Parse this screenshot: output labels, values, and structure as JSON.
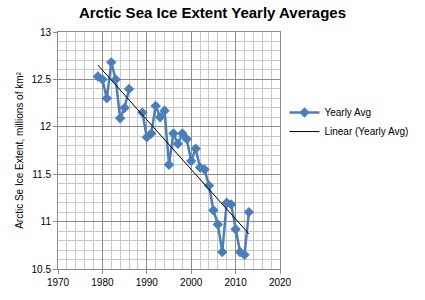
{
  "chart_data": {
    "type": "line",
    "title": "Arctic Sea Ice Extent Yearly Averages",
    "y_label": "Arctic Se Ice Extent, millions of km²",
    "x": [
      1979,
      1980,
      1981,
      1982,
      1983,
      1984,
      1985,
      1986,
      1987,
      1988,
      1989,
      1990,
      1991,
      1992,
      1993,
      1994,
      1995,
      1996,
      1997,
      1998,
      1999,
      2000,
      2001,
      2002,
      2003,
      2004,
      2005,
      2006,
      2007,
      2008,
      2009,
      2010,
      2011,
      2012,
      2013
    ],
    "series": [
      {
        "name": "Yearly Avg",
        "color": "#4a7ebb",
        "marker": "diamond",
        "line_style": "solid",
        "values": [
          12.53,
          12.5,
          12.3,
          12.68,
          12.5,
          12.09,
          12.2,
          12.4,
          null,
          null,
          12.15,
          11.89,
          11.93,
          12.22,
          12.1,
          12.17,
          11.6,
          11.93,
          11.82,
          11.93,
          11.87,
          11.64,
          11.77,
          11.57,
          11.55,
          11.38,
          11.12,
          10.97,
          10.68,
          11.2,
          11.18,
          10.92,
          10.68,
          10.65,
          11.1
        ]
      },
      {
        "name": "Linear (Yearly Avg)",
        "color": "#000000",
        "marker": "none",
        "line_style": "solid",
        "x": [
          1979,
          2013
        ],
        "values": [
          12.65,
          10.87
        ]
      }
    ],
    "xlim": [
      1970,
      2020
    ],
    "xticks": [
      1970,
      1980,
      1990,
      2000,
      2010,
      2020
    ],
    "ylim": [
      10.5,
      13
    ],
    "yticks": [
      10.5,
      11,
      11.5,
      12,
      12.5,
      13
    ],
    "grid": true,
    "legend": "right"
  }
}
